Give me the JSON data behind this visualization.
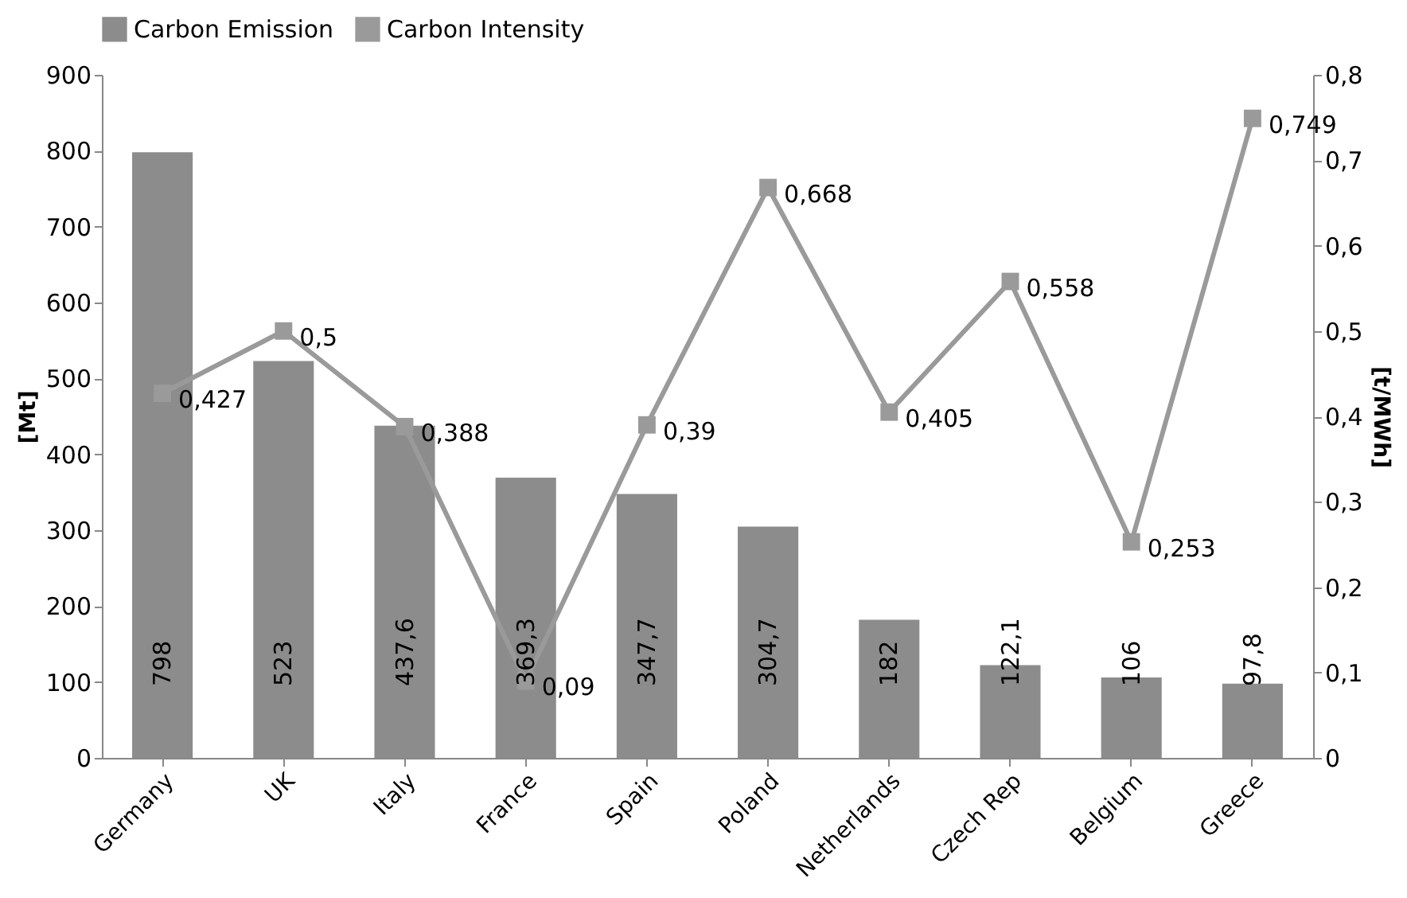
{
  "chart_data": {
    "type": "bar",
    "categories": [
      "Germany",
      "UK",
      "Italy",
      "France",
      "Spain",
      "Poland",
      "Netherlands",
      "Czech Rep",
      "Belgium",
      "Greece"
    ],
    "ylabel": "[Mt]",
    "y2label": "[t/MWh]",
    "ylim": [
      0,
      900
    ],
    "yticks": [
      0,
      100,
      200,
      300,
      400,
      500,
      600,
      700,
      800,
      900
    ],
    "y2lim": [
      0,
      0.8
    ],
    "y2ticks": [
      {
        "value": 0,
        "label": "0"
      },
      {
        "value": 0.1,
        "label": "0,1"
      },
      {
        "value": 0.2,
        "label": "0,2"
      },
      {
        "value": 0.3,
        "label": "0,3"
      },
      {
        "value": 0.4,
        "label": "0,4"
      },
      {
        "value": 0.5,
        "label": "0,5"
      },
      {
        "value": 0.6,
        "label": "0,6"
      },
      {
        "value": 0.7,
        "label": "0,7"
      },
      {
        "value": 0.8,
        "label": "0,8"
      }
    ],
    "legend": "top",
    "grid": false,
    "series": [
      {
        "name": "Carbon Emission",
        "color": "#8c8c8c",
        "values": [
          798,
          523,
          437.6,
          369.3,
          347.7,
          304.7,
          182,
          122.1,
          106,
          97.8
        ],
        "value_labels": [
          "798",
          "523",
          "437,6",
          "369,3",
          "347,7",
          "304,7",
          "182",
          "122,1",
          "106",
          "97,8"
        ]
      },
      {
        "name": "Carbon Intensity",
        "type": "line",
        "axis": "y2",
        "color": "#9a9a9a",
        "marker": "square",
        "values": [
          0.427,
          0.5,
          0.388,
          0.09,
          0.39,
          0.668,
          0.405,
          0.558,
          0.253,
          0.749
        ],
        "value_labels": [
          "0,427",
          "0,5",
          "0,388",
          "0,09",
          "0,39",
          "0,668",
          "0,405",
          "0,558",
          "0,253",
          "0,749"
        ]
      }
    ]
  }
}
